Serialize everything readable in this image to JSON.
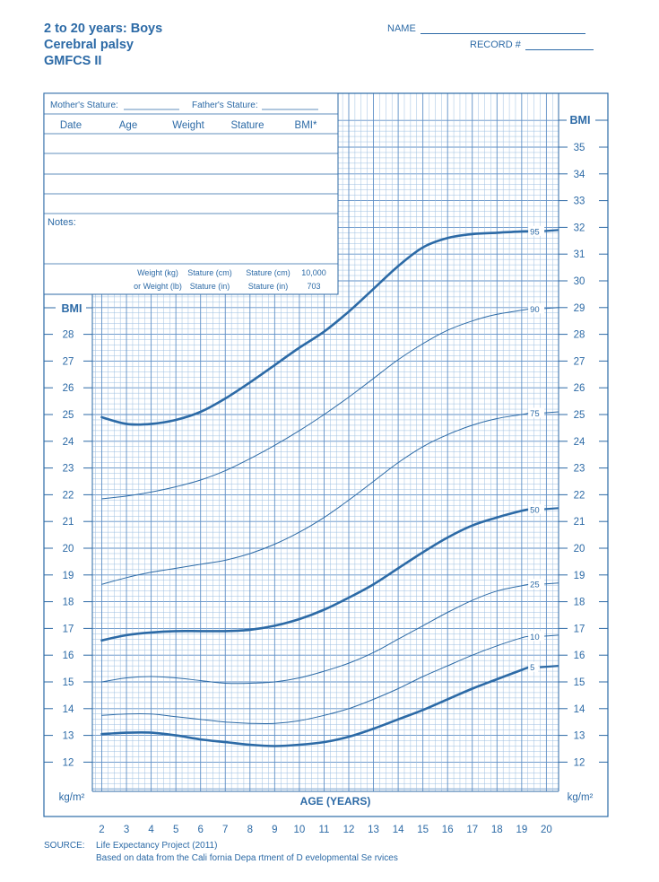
{
  "header": {
    "title_line1": "2 to 20 years: Boys",
    "title_line2": "Cerebral palsy",
    "title_line3": "GMFCS II",
    "name_label": "NAME",
    "record_label": "RECORD #"
  },
  "record_table": {
    "mother_stature": "Mother's Stature:",
    "father_stature": "Father's Stature:",
    "columns": [
      "Date",
      "Age",
      "Weight",
      "Stature",
      "BMI*"
    ],
    "notes_label": "Notes:",
    "conv_row1": [
      "Weight (kg)",
      "Stature (cm)",
      "Stature (cm)",
      "10,000"
    ],
    "conv_row2": [
      "or Weight (lb)",
      "Stature (in)",
      "Stature (in)",
      "703"
    ]
  },
  "axis": {
    "y_title": "BMI",
    "y_unit": "kg/m²",
    "x_title": "AGE (YEARS)"
  },
  "source": {
    "label": "SOURCE:",
    "line1": "Life Expectancy Project (2011)",
    "line2": "Based on data from the Cali    fornia Depa  rtment of D evelopmental Se  rvices"
  },
  "colors": {
    "ink": "#2c6aa6",
    "grid": "#9dbfe0"
  },
  "chart_data": {
    "type": "line",
    "x_ticks": [
      2,
      3,
      4,
      5,
      6,
      7,
      8,
      9,
      10,
      11,
      12,
      13,
      14,
      15,
      16,
      17,
      18,
      19,
      20
    ],
    "left_y_ticks": [
      12,
      13,
      14,
      15,
      16,
      17,
      18,
      19,
      20,
      21,
      22,
      23,
      24,
      25,
      26,
      27,
      28
    ],
    "right_y_ticks": [
      12,
      13,
      14,
      15,
      16,
      17,
      18,
      19,
      20,
      21,
      22,
      23,
      24,
      25,
      26,
      27,
      28,
      29,
      30,
      31,
      32,
      33,
      34,
      35
    ],
    "xlim": [
      2,
      20
    ],
    "ylim": [
      11,
      36
    ],
    "x": [
      2,
      3,
      4,
      5,
      6,
      7,
      8,
      9,
      10,
      11,
      12,
      13,
      14,
      15,
      16,
      17,
      18,
      19,
      19.3
    ],
    "series": [
      {
        "name": "95",
        "thick": true,
        "values": [
          24.9,
          24.65,
          24.65,
          24.8,
          25.1,
          25.6,
          26.2,
          26.85,
          27.5,
          28.1,
          28.85,
          29.7,
          30.55,
          31.25,
          31.6,
          31.75,
          31.8,
          31.85,
          31.85
        ]
      },
      {
        "name": "90",
        "thick": false,
        "values": [
          21.85,
          21.95,
          22.1,
          22.3,
          22.55,
          22.9,
          23.35,
          23.85,
          24.4,
          25.0,
          25.65,
          26.35,
          27.05,
          27.65,
          28.15,
          28.5,
          28.75,
          28.9,
          28.95
        ]
      },
      {
        "name": "75",
        "thick": false,
        "values": [
          18.65,
          18.9,
          19.1,
          19.25,
          19.4,
          19.55,
          19.8,
          20.15,
          20.6,
          21.15,
          21.8,
          22.5,
          23.2,
          23.8,
          24.25,
          24.6,
          24.85,
          25.0,
          25.05
        ]
      },
      {
        "name": "50",
        "thick": true,
        "values": [
          16.55,
          16.75,
          16.85,
          16.9,
          16.9,
          16.9,
          16.95,
          17.1,
          17.35,
          17.7,
          18.15,
          18.65,
          19.25,
          19.85,
          20.4,
          20.85,
          21.15,
          21.4,
          21.45
        ]
      },
      {
        "name": "25",
        "thick": false,
        "values": [
          15.0,
          15.15,
          15.2,
          15.15,
          15.05,
          14.95,
          14.95,
          15.0,
          15.15,
          15.4,
          15.7,
          16.1,
          16.6,
          17.1,
          17.6,
          18.05,
          18.4,
          18.6,
          18.65
        ]
      },
      {
        "name": "10",
        "thick": false,
        "values": [
          13.75,
          13.8,
          13.8,
          13.7,
          13.6,
          13.5,
          13.45,
          13.45,
          13.55,
          13.75,
          14.0,
          14.35,
          14.75,
          15.2,
          15.6,
          16.0,
          16.35,
          16.65,
          16.7
        ]
      },
      {
        "name": "5",
        "thick": true,
        "values": [
          13.05,
          13.1,
          13.1,
          13.0,
          12.85,
          12.75,
          12.65,
          12.6,
          12.65,
          12.75,
          12.95,
          13.25,
          13.6,
          13.95,
          14.35,
          14.75,
          15.1,
          15.45,
          15.55
        ]
      }
    ]
  }
}
